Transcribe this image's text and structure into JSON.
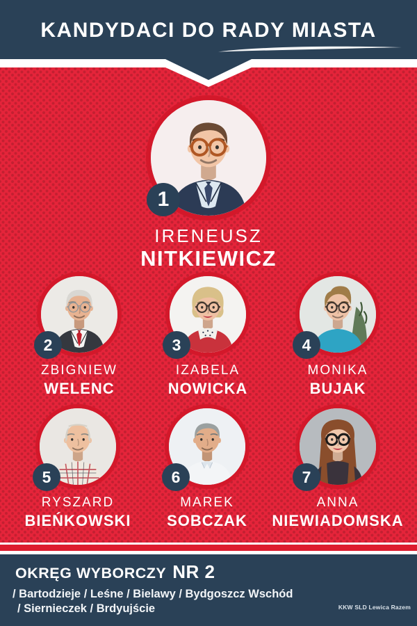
{
  "poster": {
    "title": "KANDYDACI DO RADY MIASTA",
    "candidates": [
      {
        "number": "1",
        "first_name": "IRENEUSZ",
        "last_name": "NITKIEWICZ",
        "photo": {
          "desc": "man-brown-hair-orange-glasses-navy-suit",
          "bg": "#f6eeee",
          "skin": "#f2c5a6",
          "hair": "#6b4a34",
          "hair_style": "side",
          "top": "#2c3b55",
          "shirt": "#dde8f1",
          "tie": "#39496b",
          "glasses": "orange-round"
        }
      },
      {
        "number": "2",
        "first_name": "ZBIGNIEW",
        "last_name": "WELENC",
        "photo": {
          "desc": "older-man-white-hair-glasses-dark-suit-red-tie",
          "bg": "#eceae6",
          "skin": "#e7b291",
          "hair": "#d9d7d2",
          "hair_style": "full",
          "top": "#35383f",
          "shirt": "#f6f6f4",
          "tie": "#c2202d",
          "glasses": "thin"
        }
      },
      {
        "number": "3",
        "first_name": "IZABELA",
        "last_name": "NOWICKA",
        "photo": {
          "desc": "woman-short-blonde-hair-glasses-red-jacket-polka-scarf",
          "bg": "#f4f3f1",
          "skin": "#efc0a3",
          "hair": "#d9c089",
          "hair_style": "bob",
          "top": "#c9323c",
          "glasses": "dark",
          "lips": "#b9293d",
          "scarf": true
        }
      },
      {
        "number": "4",
        "first_name": "MONIKA",
        "last_name": "BUJAK",
        "photo": {
          "desc": "person-short-quiff-hair-glasses-teal-top",
          "bg": "#e3e7e4",
          "skin": "#eec2a6",
          "hair": "#a07c48",
          "hair_style": "quiff",
          "top": "#2ea4c4",
          "glasses": "dark",
          "plant": true
        }
      },
      {
        "number": "5",
        "first_name": "RYSZARD",
        "last_name": "BIEŃKOWSKI",
        "photo": {
          "desc": "older-man-balding-checked-shirt",
          "bg": "#eae7e3",
          "skin": "#eec09f",
          "hair": "#d5d0c6",
          "hair_style": "balding",
          "top": "#efe9e0",
          "check": true
        }
      },
      {
        "number": "6",
        "first_name": "MAREK",
        "last_name": "SOBCZAK",
        "photo": {
          "desc": "man-gray-hair-light-shirt",
          "bg": "#eef1f4",
          "skin": "#e2ad89",
          "hair": "#9aa0a0",
          "hair_style": "side",
          "top": "#f3f5f7",
          "collar": true
        }
      },
      {
        "number": "7",
        "first_name": "ANNA",
        "last_name": "NIEWIADOMSKA",
        "photo": {
          "desc": "woman-long-auburn-hair-black-cat-eye-glasses",
          "bg": "#b7bbbf",
          "skin": "#f1c8ac",
          "hair": "#8a4e2c",
          "hair_style": "long",
          "top": "#3a333c",
          "glasses": "cat",
          "lips": "#b9293d"
        }
      }
    ],
    "footer": {
      "district_label": "OKRĘG WYBORCZY",
      "district_number": "NR 2",
      "areas_line1": "/ Bartodzieje / Leśne / Bielawy / Bydgoszcz Wschód",
      "areas_line2": "/ Siernieczek / Brdyujście",
      "committee": "KKW SLD Lewica Razem"
    },
    "colors": {
      "navy": "#2a4157",
      "red_background": "#e5243a",
      "red_dot": "#c22031",
      "ring_red": "#d3182a",
      "stripe_red": "#dd1c2e",
      "white": "#ffffff"
    }
  }
}
